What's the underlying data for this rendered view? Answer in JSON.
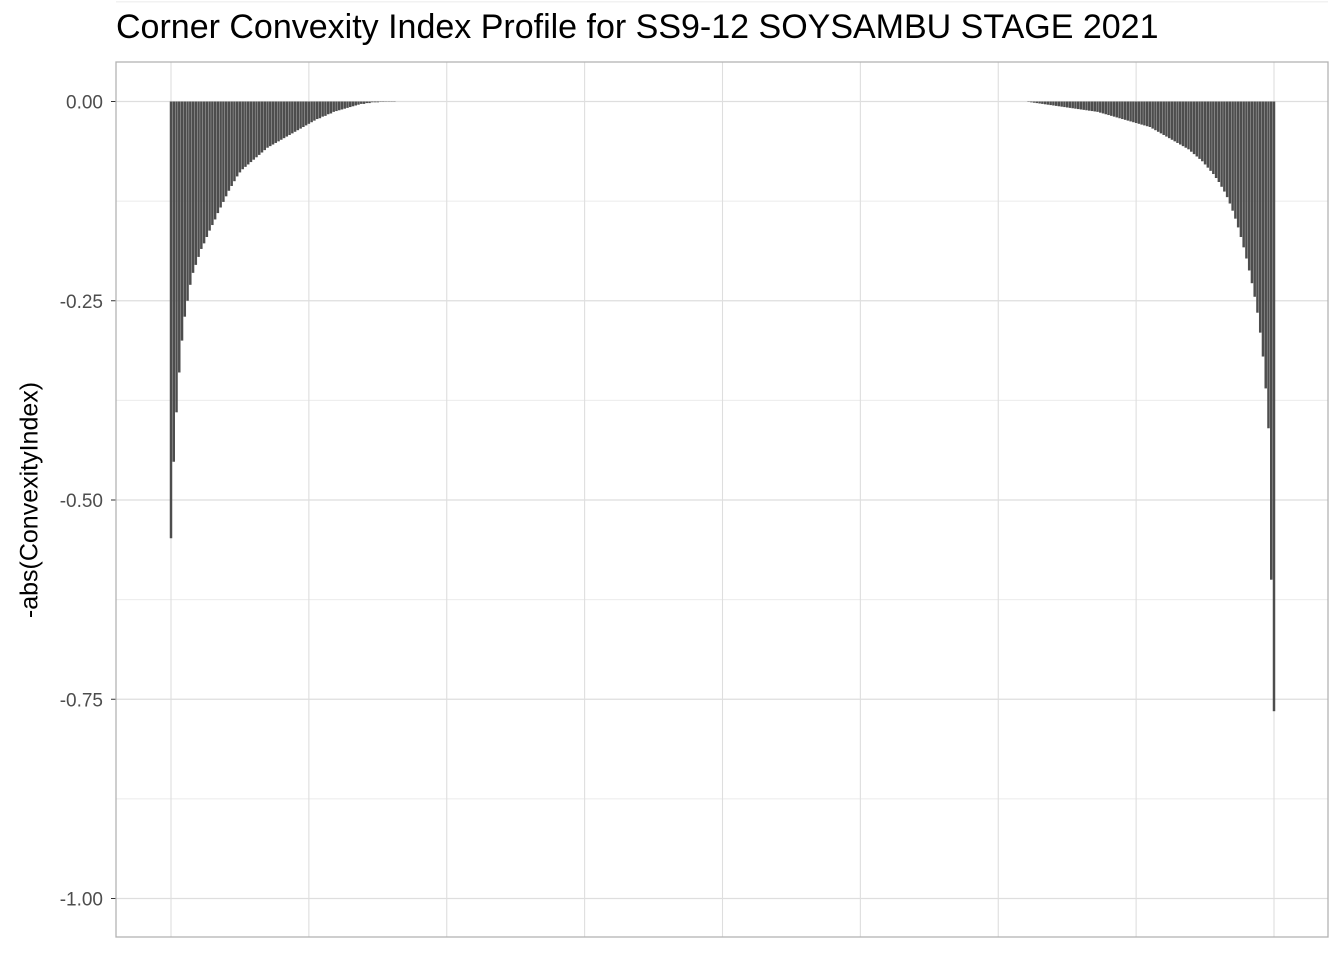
{
  "chart_data": {
    "type": "bar",
    "title": "Corner Convexity Index Profile for SS9-12 SOYSAMBU STAGE 2021",
    "xlabel": "",
    "ylabel": "-abs(ConvexityIndex)",
    "ylim": [
      -1.05,
      0.05
    ],
    "y_ticks": [
      {
        "value": 0.0,
        "label": "0.00"
      },
      {
        "value": -0.25,
        "label": "-0.25"
      },
      {
        "value": -0.5,
        "label": "-0.50"
      },
      {
        "value": -0.75,
        "label": "-0.75"
      },
      {
        "value": -1.0,
        "label": "-1.00"
      }
    ],
    "x_tick_labels_shown": false,
    "grid": true,
    "bar_color": "#4d4d4d",
    "categories_count": 401,
    "left_segment": {
      "start_index": 0,
      "values": [
        -0.548,
        -0.452,
        -0.39,
        -0.34,
        -0.3,
        -0.27,
        -0.25,
        -0.23,
        -0.215,
        -0.205,
        -0.195,
        -0.185,
        -0.178,
        -0.17,
        -0.162,
        -0.155,
        -0.148,
        -0.14,
        -0.133,
        -0.126,
        -0.119,
        -0.112,
        -0.106,
        -0.1,
        -0.094,
        -0.089,
        -0.085,
        -0.082,
        -0.079,
        -0.076,
        -0.073,
        -0.07,
        -0.067,
        -0.064,
        -0.061,
        -0.058,
        -0.056,
        -0.054,
        -0.052,
        -0.05,
        -0.048,
        -0.046,
        -0.044,
        -0.042,
        -0.04,
        -0.038,
        -0.036,
        -0.034,
        -0.032,
        -0.03,
        -0.028,
        -0.026,
        -0.024,
        -0.022,
        -0.021,
        -0.019,
        -0.018,
        -0.016,
        -0.015,
        -0.013,
        -0.012,
        -0.011,
        -0.01,
        -0.009,
        -0.008,
        -0.007,
        -0.006,
        -0.005,
        -0.004,
        -0.003,
        -0.003,
        -0.002,
        -0.002,
        -0.001,
        -0.001,
        -0.001,
        -0.0005,
        -0.0005,
        -0.0003,
        -0.0002,
        -0.0001,
        -0.0001
      ]
    },
    "right_segment": {
      "end_index": 400,
      "values": [
        -0.0005,
        -0.001,
        -0.0015,
        -0.002,
        -0.0025,
        -0.003,
        -0.0035,
        -0.004,
        -0.0045,
        -0.005,
        -0.0055,
        -0.006,
        -0.0065,
        -0.007,
        -0.0075,
        -0.008,
        -0.0085,
        -0.009,
        -0.0095,
        -0.01,
        -0.0105,
        -0.011,
        -0.0115,
        -0.012,
        -0.0125,
        -0.013,
        -0.014,
        -0.015,
        -0.016,
        -0.017,
        -0.018,
        -0.019,
        -0.02,
        -0.021,
        -0.022,
        -0.023,
        -0.024,
        -0.025,
        -0.026,
        -0.027,
        -0.028,
        -0.029,
        -0.03,
        -0.031,
        -0.032,
        -0.034,
        -0.036,
        -0.038,
        -0.04,
        -0.042,
        -0.044,
        -0.046,
        -0.048,
        -0.05,
        -0.052,
        -0.054,
        -0.056,
        -0.058,
        -0.06,
        -0.063,
        -0.066,
        -0.069,
        -0.072,
        -0.075,
        -0.079,
        -0.083,
        -0.087,
        -0.091,
        -0.096,
        -0.101,
        -0.107,
        -0.113,
        -0.12,
        -0.128,
        -0.137,
        -0.147,
        -0.158,
        -0.17,
        -0.183,
        -0.197,
        -0.212,
        -0.228,
        -0.245,
        -0.265,
        -0.29,
        -0.32,
        -0.36,
        -0.41,
        -0.6,
        -0.765
      ]
    }
  },
  "colors": {
    "panel_border": "#b3b3b3",
    "grid_major": "#dedede",
    "grid_minor": "#ebebeb",
    "tick_label": "#4d4d4d"
  }
}
